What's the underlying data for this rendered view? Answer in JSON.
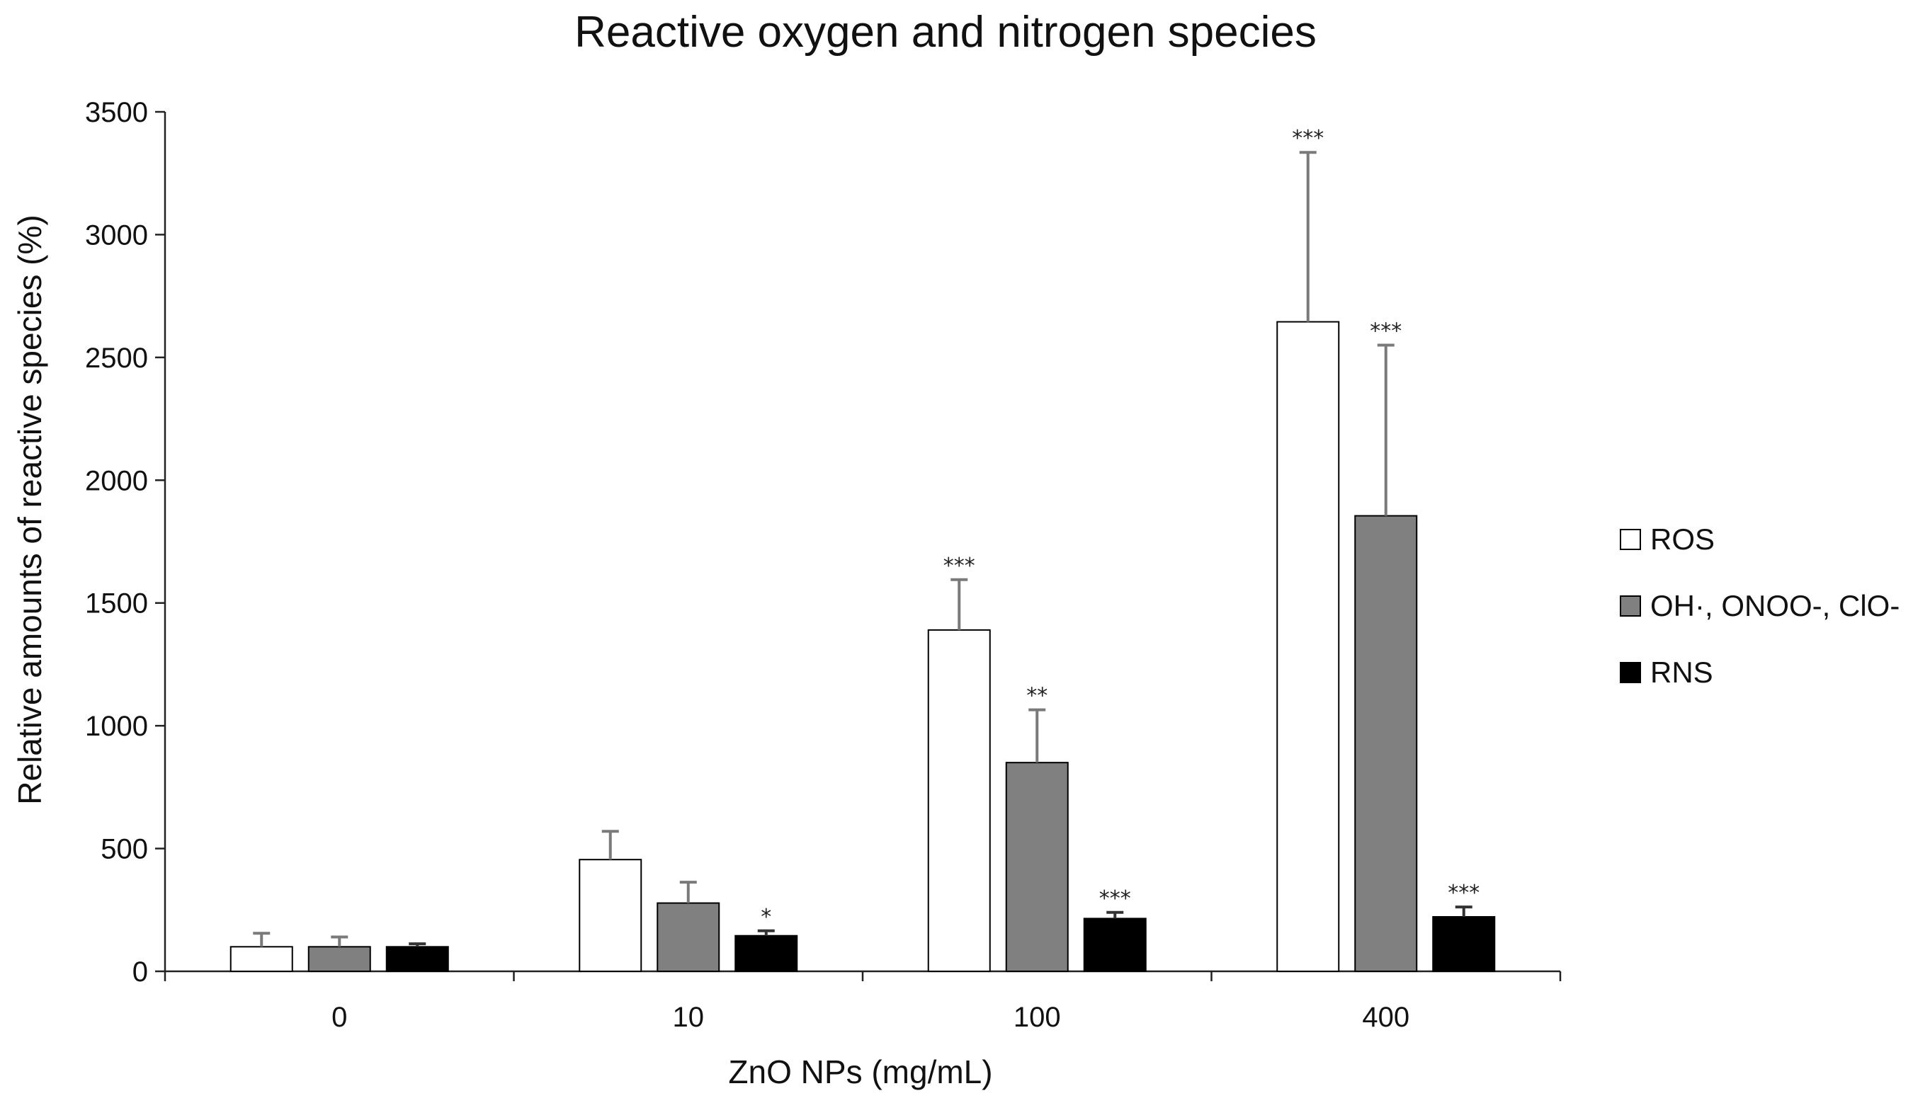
{
  "chart_data": {
    "type": "bar",
    "title": "Reactive oxygen and nitrogen species",
    "xlabel": "ZnO NPs (mg/mL)",
    "ylabel": "Relative amounts of reactive species (%)",
    "ylim": [
      0,
      3500
    ],
    "yticks": [
      0,
      500,
      1000,
      1500,
      2000,
      2500,
      3000,
      3500
    ],
    "categories": [
      "0",
      "10",
      "100",
      "400"
    ],
    "legend_position": "right",
    "series": [
      {
        "name": "ROS",
        "color": "#ffffff",
        "values": [
          100,
          455,
          1390,
          2645
        ],
        "errors": [
          55,
          115,
          205,
          690
        ],
        "significance": [
          "",
          "",
          "***",
          "***"
        ]
      },
      {
        "name": "OH·, ONOO-, ClO-",
        "color": "#808080",
        "values": [
          100,
          278,
          850,
          1855
        ],
        "errors": [
          40,
          85,
          215,
          695
        ],
        "significance": [
          "",
          "",
          "**",
          "***"
        ]
      },
      {
        "name": "RNS",
        "color": "#000000",
        "values": [
          100,
          145,
          215,
          222
        ],
        "errors": [
          12,
          20,
          25,
          40
        ],
        "significance": [
          "",
          "*",
          "***",
          "***"
        ]
      }
    ]
  }
}
